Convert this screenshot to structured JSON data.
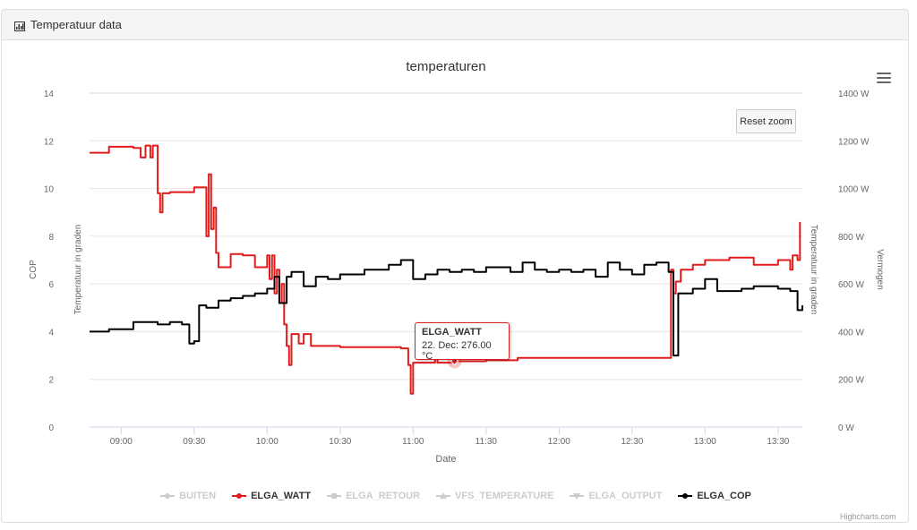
{
  "panel": {
    "title": "Temperatuur data",
    "icon": "bar-chart-icon"
  },
  "chart_data": {
    "type": "line",
    "title": "temperaturen",
    "xlabel": "Date",
    "x_ticks": [
      "09:00",
      "09:30",
      "10:00",
      "10:30",
      "11:00",
      "11:30",
      "12:00",
      "12:30",
      "13:00",
      "13:30"
    ],
    "x_range": [
      "08:47",
      "13:40"
    ],
    "y_axes": [
      {
        "id": "cop",
        "label": "COP",
        "ticks": [
          "0",
          "2",
          "4",
          "6",
          "8",
          "10",
          "12",
          "14"
        ],
        "range": [
          0,
          14
        ]
      },
      {
        "id": "temp_left",
        "label": "Temperatuur in graden"
      },
      {
        "id": "temp_right",
        "label": "Temperatuur in graden"
      },
      {
        "id": "watt",
        "label": "Vermogen",
        "ticks": [
          "0 W",
          "200 W",
          "400 W",
          "600 W",
          "800 W",
          "1000 W",
          "1200 W",
          "1400 W"
        ],
        "range": [
          0,
          1400
        ]
      }
    ],
    "grid": true,
    "legend_position": "bottom-center",
    "series": [
      {
        "name": "BUITEN",
        "visible": false,
        "marker": "circle"
      },
      {
        "name": "ELGA_WATT",
        "visible": true,
        "marker": "circle",
        "color": "#e21b1b",
        "axis": "watt",
        "points": [
          [
            "08:47",
            1150
          ],
          [
            "08:55",
            1175
          ],
          [
            "09:02",
            1175
          ],
          [
            "09:05",
            1170
          ],
          [
            "09:07",
            1170
          ],
          [
            "09:08",
            1130
          ],
          [
            "09:10",
            1180
          ],
          [
            "09:12",
            1130
          ],
          [
            "09:13",
            1180
          ],
          [
            "09:15",
            980
          ],
          [
            "09:16",
            900
          ],
          [
            "09:17",
            980
          ],
          [
            "09:20",
            985
          ],
          [
            "09:30",
            1005
          ],
          [
            "09:32",
            1005
          ],
          [
            "09:35",
            800
          ],
          [
            "09:36",
            1060
          ],
          [
            "09:37",
            830
          ],
          [
            "09:38",
            920
          ],
          [
            "09:39",
            730
          ],
          [
            "09:40",
            670
          ],
          [
            "09:45",
            725
          ],
          [
            "09:50",
            720
          ],
          [
            "09:55",
            670
          ],
          [
            "10:00",
            720
          ],
          [
            "10:01",
            620
          ],
          [
            "10:02",
            720
          ],
          [
            "10:03",
            560
          ],
          [
            "10:04",
            660
          ],
          [
            "10:05",
            520
          ],
          [
            "10:06",
            600
          ],
          [
            "10:07",
            430
          ],
          [
            "10:08",
            340
          ],
          [
            "10:09",
            260
          ],
          [
            "10:10",
            390
          ],
          [
            "10:13",
            350
          ],
          [
            "10:15",
            390
          ],
          [
            "10:18",
            340
          ],
          [
            "10:30",
            335
          ],
          [
            "10:55",
            330
          ],
          [
            "10:58",
            260
          ],
          [
            "10:59",
            140
          ],
          [
            "11:00",
            270
          ],
          [
            "11:08",
            270
          ],
          [
            "11:09",
            300
          ],
          [
            "11:10",
            270
          ],
          [
            "11:17",
            276
          ],
          [
            "11:30",
            280
          ],
          [
            "11:42",
            280
          ],
          [
            "11:43",
            290
          ],
          [
            "12:00",
            290
          ],
          [
            "12:30",
            290
          ],
          [
            "12:40",
            290
          ],
          [
            "12:45",
            290
          ],
          [
            "12:46",
            660
          ],
          [
            "12:47",
            560
          ],
          [
            "12:48",
            610
          ],
          [
            "12:50",
            660
          ],
          [
            "12:55",
            680
          ],
          [
            "13:00",
            700
          ],
          [
            "13:10",
            710
          ],
          [
            "13:20",
            680
          ],
          [
            "13:30",
            700
          ],
          [
            "13:35",
            660
          ],
          [
            "13:36",
            720
          ],
          [
            "13:38",
            700
          ],
          [
            "13:39",
            860
          ]
        ]
      },
      {
        "name": "ELGA_RETOUR",
        "visible": false,
        "marker": "square"
      },
      {
        "name": "VFS_TEMPERATURE",
        "visible": false,
        "marker": "triangle"
      },
      {
        "name": "ELGA_OUTPUT",
        "visible": false,
        "marker": "triangle-down"
      },
      {
        "name": "ELGA_COP",
        "visible": true,
        "marker": "circle",
        "color": "#000000",
        "axis": "cop",
        "points": [
          [
            "08:47",
            4.0
          ],
          [
            "08:55",
            4.1
          ],
          [
            "09:00",
            4.1
          ],
          [
            "09:05",
            4.4
          ],
          [
            "09:10",
            4.4
          ],
          [
            "09:15",
            4.3
          ],
          [
            "09:20",
            4.4
          ],
          [
            "09:25",
            4.3
          ],
          [
            "09:28",
            3.5
          ],
          [
            "09:30",
            3.6
          ],
          [
            "09:32",
            5.1
          ],
          [
            "09:35",
            5.0
          ],
          [
            "09:40",
            5.3
          ],
          [
            "09:45",
            5.4
          ],
          [
            "09:50",
            5.5
          ],
          [
            "09:55",
            5.6
          ],
          [
            "10:00",
            5.8
          ],
          [
            "10:03",
            6.3
          ],
          [
            "10:05",
            5.2
          ],
          [
            "10:08",
            6.3
          ],
          [
            "10:10",
            6.5
          ],
          [
            "10:15",
            5.9
          ],
          [
            "10:20",
            6.3
          ],
          [
            "10:25",
            6.2
          ],
          [
            "10:30",
            6.4
          ],
          [
            "10:35",
            6.4
          ],
          [
            "10:40",
            6.6
          ],
          [
            "10:45",
            6.6
          ],
          [
            "10:50",
            6.8
          ],
          [
            "10:55",
            7.0
          ],
          [
            "11:00",
            6.2
          ],
          [
            "11:05",
            6.4
          ],
          [
            "11:10",
            6.6
          ],
          [
            "11:15",
            6.5
          ],
          [
            "11:20",
            6.6
          ],
          [
            "11:25",
            6.5
          ],
          [
            "11:30",
            6.7
          ],
          [
            "11:35",
            6.7
          ],
          [
            "11:40",
            6.5
          ],
          [
            "11:45",
            6.9
          ],
          [
            "11:50",
            6.6
          ],
          [
            "11:55",
            6.5
          ],
          [
            "12:00",
            6.6
          ],
          [
            "12:05",
            6.5
          ],
          [
            "12:10",
            6.6
          ],
          [
            "12:15",
            6.3
          ],
          [
            "12:20",
            6.9
          ],
          [
            "12:25",
            6.6
          ],
          [
            "12:30",
            6.4
          ],
          [
            "12:35",
            6.8
          ],
          [
            "12:40",
            6.9
          ],
          [
            "12:45",
            6.5
          ],
          [
            "12:47",
            3.0
          ],
          [
            "12:49",
            5.6
          ],
          [
            "12:55",
            5.8
          ],
          [
            "13:00",
            6.2
          ],
          [
            "13:05",
            5.7
          ],
          [
            "13:10",
            5.7
          ],
          [
            "13:15",
            5.8
          ],
          [
            "13:20",
            5.9
          ],
          [
            "13:25",
            5.9
          ],
          [
            "13:30",
            5.8
          ],
          [
            "13:35",
            5.7
          ],
          [
            "13:38",
            4.9
          ],
          [
            "13:40",
            5.1
          ]
        ]
      }
    ],
    "tooltip": {
      "series": "ELGA_WATT",
      "text": "22. Dec: 276.00 °C",
      "x": "11:17",
      "y": 276
    }
  },
  "toolbar": {
    "reset_zoom_label": "Reset zoom",
    "menu_icon": "hamburger-menu-icon"
  },
  "credits": "Highcharts.com",
  "colors": {
    "watt": "#e21b1b",
    "cop": "#000000",
    "hidden": "#cccccc",
    "grid": "#e6e6e6",
    "axis_text": "#666666"
  }
}
